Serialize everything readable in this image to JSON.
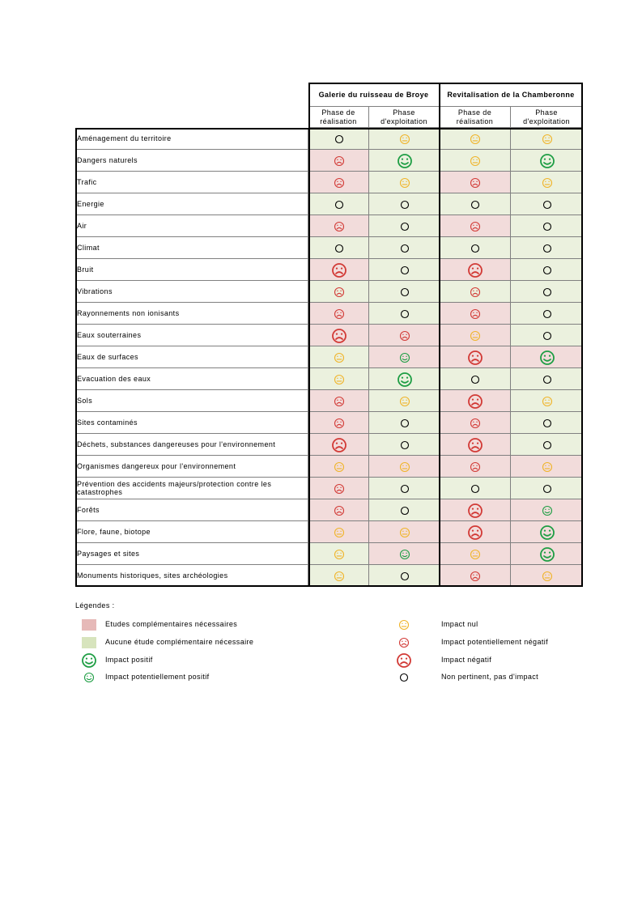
{
  "table": {
    "groups": [
      "Galerie du ruisseau  de Broye",
      "Revitalisation de la Chamberonne"
    ],
    "phases": [
      "Phase de réalisation",
      "Phase d'exploitation",
      "Phase de réalisation",
      "Phase d'exploitation"
    ],
    "rows": [
      {
        "label": "Aménagement du territoire",
        "cells": [
          [
            "Aucune étude complémentaire nécessaire",
            "Non pertinent, pas d'impact"
          ],
          [
            "Aucune étude complémentaire nécessaire",
            "Impact nul"
          ],
          [
            "Aucune étude complémentaire nécessaire",
            "Impact nul"
          ],
          [
            "Aucune étude complémentaire nécessaire",
            "Impact nul"
          ]
        ]
      },
      {
        "label": "Dangers naturels",
        "cells": [
          [
            "Etudes complémentaires nécessaires",
            "Impact potentiellement négatif"
          ],
          [
            "Aucune étude complémentaire nécessaire",
            "Impact positif"
          ],
          [
            "Aucune étude complémentaire nécessaire",
            "Impact nul"
          ],
          [
            "Aucune étude complémentaire nécessaire",
            "Impact positif"
          ]
        ]
      },
      {
        "label": "Trafic",
        "cells": [
          [
            "Etudes complémentaires nécessaires",
            "Impact potentiellement négatif"
          ],
          [
            "Aucune étude complémentaire nécessaire",
            "Impact nul"
          ],
          [
            "Etudes complémentaires nécessaires",
            "Impact potentiellement négatif"
          ],
          [
            "Aucune étude complémentaire nécessaire",
            "Impact nul"
          ]
        ]
      },
      {
        "label": "Energie",
        "cells": [
          [
            "Aucune étude complémentaire nécessaire",
            "Non pertinent, pas d'impact"
          ],
          [
            "Aucune étude complémentaire nécessaire",
            "Non pertinent, pas d'impact"
          ],
          [
            "Aucune étude complémentaire nécessaire",
            "Non pertinent, pas d'impact"
          ],
          [
            "Aucune étude complémentaire nécessaire",
            "Non pertinent, pas d'impact"
          ]
        ]
      },
      {
        "label": "Air",
        "cells": [
          [
            "Etudes complémentaires nécessaires",
            "Impact potentiellement négatif"
          ],
          [
            "Aucune étude complémentaire nécessaire",
            "Non pertinent, pas d'impact"
          ],
          [
            "Etudes complémentaires nécessaires",
            "Impact potentiellement négatif"
          ],
          [
            "Aucune étude complémentaire nécessaire",
            "Non pertinent, pas d'impact"
          ]
        ]
      },
      {
        "label": "Climat",
        "cells": [
          [
            "Aucune étude complémentaire nécessaire",
            "Non pertinent, pas d'impact"
          ],
          [
            "Aucune étude complémentaire nécessaire",
            "Non pertinent, pas d'impact"
          ],
          [
            "Aucune étude complémentaire nécessaire",
            "Non pertinent, pas d'impact"
          ],
          [
            "Aucune étude complémentaire nécessaire",
            "Non pertinent, pas d'impact"
          ]
        ]
      },
      {
        "label": "Bruit",
        "cells": [
          [
            "Etudes complémentaires nécessaires",
            "Impact négatif"
          ],
          [
            "Aucune étude complémentaire nécessaire",
            "Non pertinent, pas d'impact"
          ],
          [
            "Etudes complémentaires nécessaires",
            "Impact négatif"
          ],
          [
            "Aucune étude complémentaire nécessaire",
            "Non pertinent, pas d'impact"
          ]
        ]
      },
      {
        "label": "Vibrations",
        "cells": [
          [
            "Aucune étude complémentaire nécessaire",
            "Impact potentiellement négatif"
          ],
          [
            "Aucune étude complémentaire nécessaire",
            "Non pertinent, pas d'impact"
          ],
          [
            "Aucune étude complémentaire nécessaire",
            "Impact potentiellement négatif"
          ],
          [
            "Aucune étude complémentaire nécessaire",
            "Non pertinent, pas d'impact"
          ]
        ]
      },
      {
        "label": "Rayonnements non ionisants",
        "cells": [
          [
            "Etudes complémentaires nécessaires",
            "Impact potentiellement négatif"
          ],
          [
            "Aucune étude complémentaire nécessaire",
            "Non pertinent, pas d'impact"
          ],
          [
            "Etudes complémentaires nécessaires",
            "Impact potentiellement négatif"
          ],
          [
            "Aucune étude complémentaire nécessaire",
            "Non pertinent, pas d'impact"
          ]
        ]
      },
      {
        "label": "Eaux souterraines",
        "cells": [
          [
            "Etudes complémentaires nécessaires",
            "Impact négatif"
          ],
          [
            "Etudes complémentaires nécessaires",
            "Impact potentiellement négatif"
          ],
          [
            "Etudes complémentaires nécessaires",
            "Impact nul"
          ],
          [
            "Aucune étude complémentaire nécessaire",
            "Non pertinent, pas d'impact"
          ]
        ]
      },
      {
        "label": "Eaux de surfaces",
        "cells": [
          [
            "Aucune étude complémentaire nécessaire",
            "Impact nul"
          ],
          [
            "Etudes complémentaires nécessaires",
            "Impact potentiellement positif"
          ],
          [
            "Etudes complémentaires nécessaires",
            "Impact négatif"
          ],
          [
            "Etudes complémentaires nécessaires",
            "Impact positif"
          ]
        ]
      },
      {
        "label": "Evacuation des eaux",
        "cells": [
          [
            "Aucune étude complémentaire nécessaire",
            "Impact nul"
          ],
          [
            "Aucune étude complémentaire nécessaire",
            "Impact positif"
          ],
          [
            "Aucune étude complémentaire nécessaire",
            "Non pertinent, pas d'impact"
          ],
          [
            "Aucune étude complémentaire nécessaire",
            "Non pertinent, pas d'impact"
          ]
        ]
      },
      {
        "label": "Sols",
        "cells": [
          [
            "Etudes complémentaires nécessaires",
            "Impact potentiellement négatif"
          ],
          [
            "Aucune étude complémentaire nécessaire",
            "Impact nul"
          ],
          [
            "Etudes complémentaires nécessaires",
            "Impact négatif"
          ],
          [
            "Aucune étude complémentaire nécessaire",
            "Impact nul"
          ]
        ]
      },
      {
        "label": "Sites contaminés",
        "cells": [
          [
            "Etudes complémentaires nécessaires",
            "Impact potentiellement négatif"
          ],
          [
            "Aucune étude complémentaire nécessaire",
            "Non pertinent, pas d'impact"
          ],
          [
            "Etudes complémentaires nécessaires",
            "Impact potentiellement négatif"
          ],
          [
            "Aucune étude complémentaire nécessaire",
            "Non pertinent, pas d'impact"
          ]
        ]
      },
      {
        "label": "Déchets, substances dangereuses pour l'environnement",
        "cells": [
          [
            "Etudes complémentaires nécessaires",
            "Impact négatif"
          ],
          [
            "Aucune étude complémentaire nécessaire",
            "Non pertinent, pas d'impact"
          ],
          [
            "Etudes complémentaires nécessaires",
            "Impact négatif"
          ],
          [
            "Aucune étude complémentaire nécessaire",
            "Non pertinent, pas d'impact"
          ]
        ]
      },
      {
        "label": "Organismes dangereux pour l'environnement",
        "cells": [
          [
            "Etudes complémentaires nécessaires",
            "Impact nul"
          ],
          [
            "Etudes complémentaires nécessaires",
            "Impact nul"
          ],
          [
            "Etudes complémentaires nécessaires",
            "Impact potentiellement négatif"
          ],
          [
            "Etudes complémentaires nécessaires",
            "Impact nul"
          ]
        ]
      },
      {
        "label": "Prévention des accidents majeurs/protection contre les catastrophes",
        "cells": [
          [
            "Etudes complémentaires nécessaires",
            "Impact potentiellement négatif"
          ],
          [
            "Aucune étude complémentaire nécessaire",
            "Non pertinent, pas d'impact"
          ],
          [
            "Aucune étude complémentaire nécessaire",
            "Non pertinent, pas d'impact"
          ],
          [
            "Aucune étude complémentaire nécessaire",
            "Non pertinent, pas d'impact"
          ]
        ]
      },
      {
        "label": "Forêts",
        "cells": [
          [
            "Etudes complémentaires nécessaires",
            "Impact potentiellement négatif"
          ],
          [
            "Aucune étude complémentaire nécessaire",
            "Non pertinent, pas d'impact"
          ],
          [
            "Etudes complémentaires nécessaires",
            "Impact négatif"
          ],
          [
            "Etudes complémentaires nécessaires",
            "Impact potentiellement positif"
          ]
        ]
      },
      {
        "label": "Flore, faune, biotope",
        "cells": [
          [
            "Etudes complémentaires nécessaires",
            "Impact nul"
          ],
          [
            "Etudes complémentaires nécessaires",
            "Impact nul"
          ],
          [
            "Etudes complémentaires nécessaires",
            "Impact négatif"
          ],
          [
            "Etudes complémentaires nécessaires",
            "Impact positif"
          ]
        ]
      },
      {
        "label": "Paysages et sites",
        "cells": [
          [
            "Aucune étude complémentaire nécessaire",
            "Impact nul"
          ],
          [
            "Etudes complémentaires nécessaires",
            "Impact potentiellement positif"
          ],
          [
            "Etudes complémentaires nécessaires",
            "Impact nul"
          ],
          [
            "Etudes complémentaires nécessaires",
            "Impact positif"
          ]
        ]
      },
      {
        "label": "Monuments historiques, sites archéologies",
        "cells": [
          [
            "Aucune étude complémentaire nécessaire",
            "Impact nul"
          ],
          [
            "Aucune étude complémentaire nécessaire",
            "Non pertinent, pas d'impact"
          ],
          [
            "Etudes complémentaires nécessaires",
            "Impact potentiellement négatif"
          ],
          [
            "Etudes complémentaires nécessaires",
            "Impact nul"
          ]
        ]
      }
    ]
  },
  "legend": {
    "title": "Légendes :",
    "items": [
      {
        "label": "Etudes complémentaires nécessaires",
        "swatch": "#e6b9b8",
        "cell": "#f2dcdb"
      },
      {
        "label": "Aucune étude complémentaire nécessaire",
        "swatch": "#d7e4bd",
        "cell": "#ebf1de"
      },
      {
        "label": "Impact positif",
        "color": "#1e9e44",
        "size": "big",
        "face": "smile"
      },
      {
        "label": "Impact potentiellement positif",
        "color": "#1e9e44",
        "size": "small",
        "face": "smile"
      },
      {
        "label": "Impact nul",
        "color": "#f0b429",
        "size": "small",
        "face": "flat"
      },
      {
        "label": "Impact potentiellement négatif",
        "color": "#d23a36",
        "size": "small",
        "face": "frown"
      },
      {
        "label": "Impact négatif",
        "color": "#d23a36",
        "size": "big",
        "face": "frown"
      },
      {
        "label": "Non pertinent, pas d'impact",
        "color": "#000000",
        "size": "small",
        "face": "none"
      }
    ]
  }
}
